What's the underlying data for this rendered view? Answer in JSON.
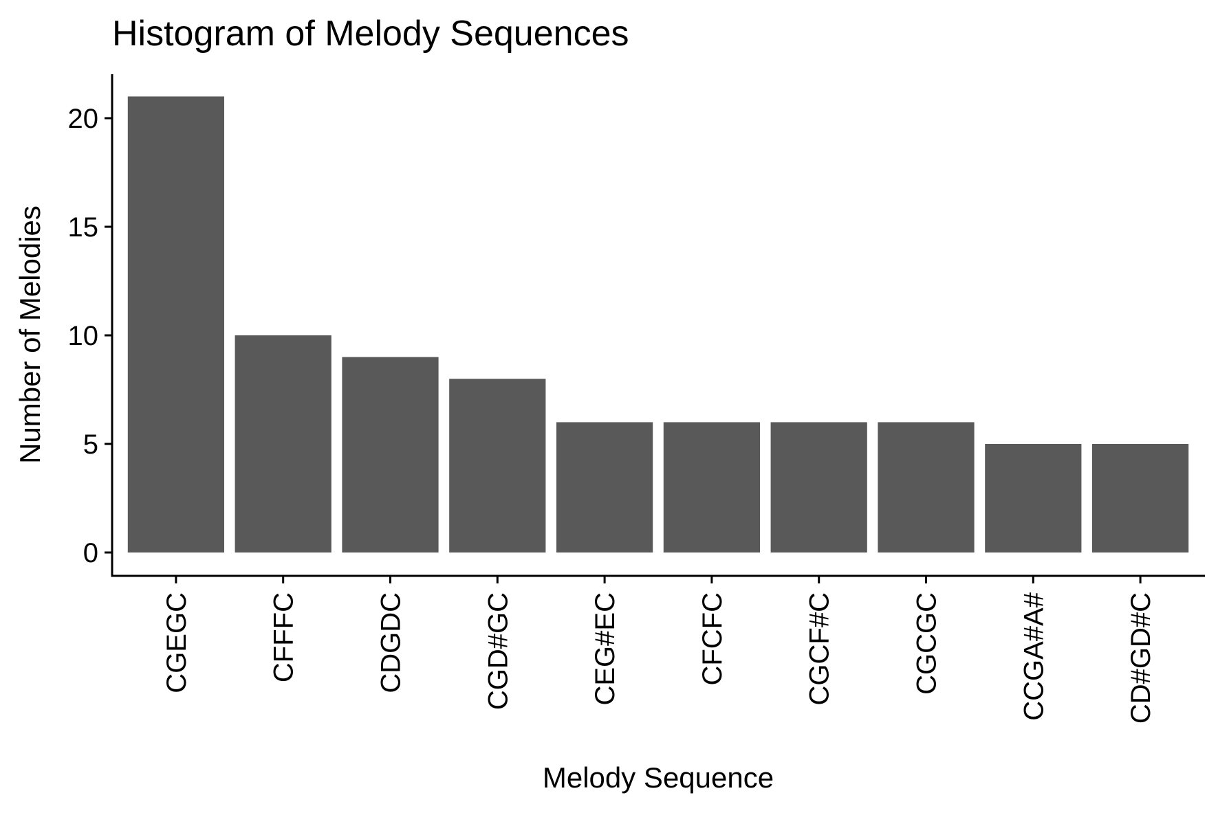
{
  "chart_data": {
    "type": "bar",
    "title": "Histogram of Melody Sequences",
    "xlabel": "Melody Sequence",
    "ylabel": "Number of Melodies",
    "categories": [
      "CGEGC",
      "CFFFC",
      "CDGDC",
      "CGD#GC",
      "CEG#EC",
      "CFCFC",
      "CGCF#C",
      "CGCGC",
      "CCGA#A#",
      "CD#GD#C"
    ],
    "values": [
      21,
      10,
      9,
      8,
      6,
      6,
      6,
      6,
      5,
      5
    ],
    "ylim": [
      0,
      22
    ],
    "yticks": [
      0,
      5,
      10,
      15,
      20
    ],
    "grid": false,
    "legend": "none",
    "colors": {
      "bar": "#595959",
      "axis": "#000000",
      "background": "#ffffff"
    }
  }
}
